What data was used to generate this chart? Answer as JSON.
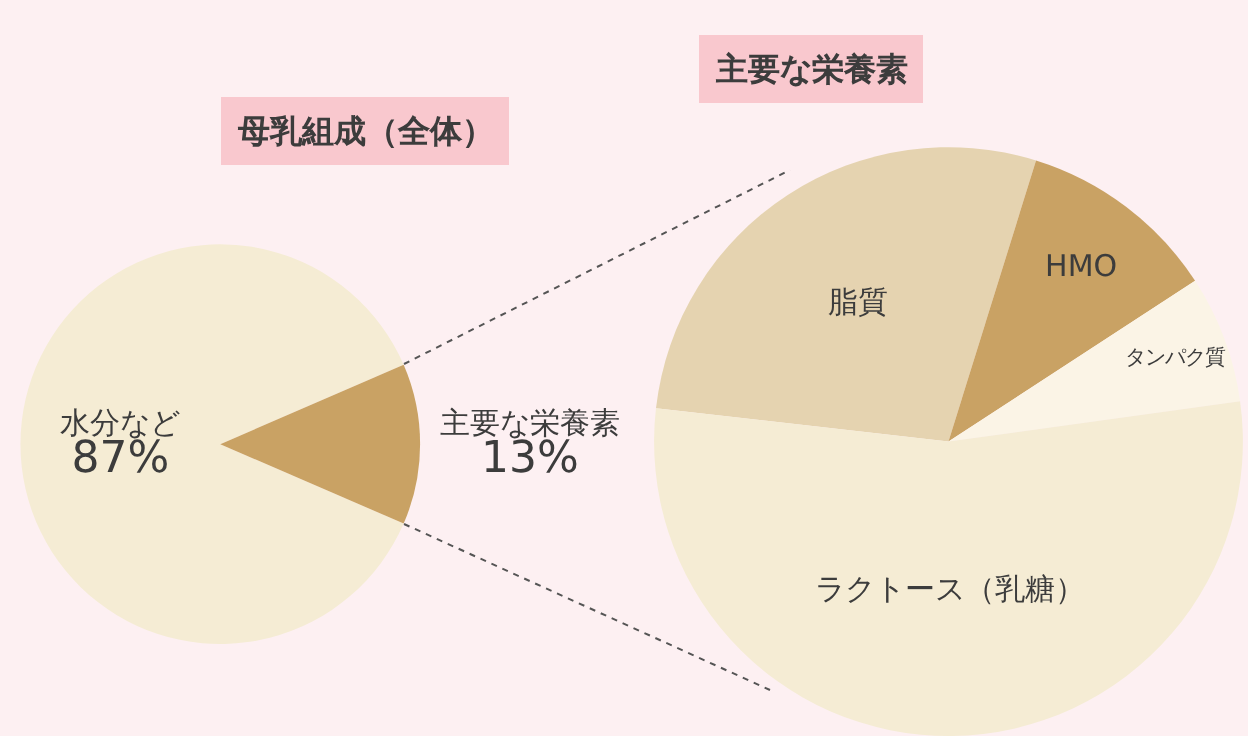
{
  "chart_data": [
    {
      "type": "pie",
      "title": "母乳組成（全体）",
      "categories": [
        "水分など",
        "主要な栄養素"
      ],
      "values": [
        87,
        13
      ],
      "colors": [
        "#f5ecd4",
        "#c9a264"
      ],
      "value_labels": [
        "87%",
        "13%"
      ]
    },
    {
      "type": "pie",
      "title": "主要な栄養素",
      "categories": [
        "脂質",
        "HMO",
        "タンパク質",
        "ラクトース（乳糖）"
      ],
      "values": [
        28,
        11,
        7,
        54
      ],
      "colors": [
        "#e5d3b0",
        "#c9a264",
        "#fbf4e6",
        "#f5ecd4"
      ]
    }
  ]
}
